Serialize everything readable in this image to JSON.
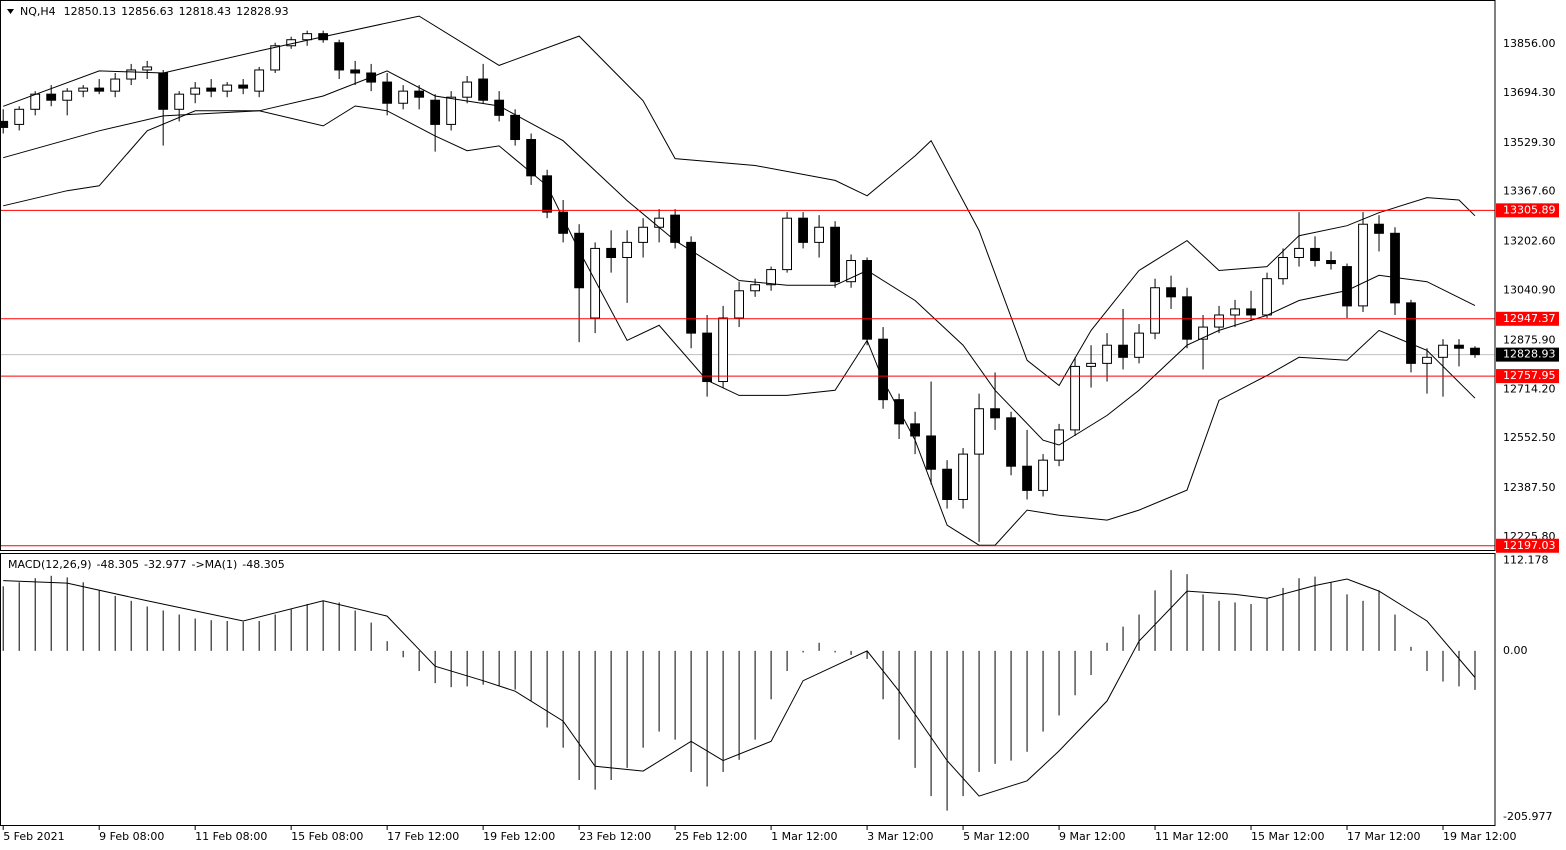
{
  "chart_data": [
    {
      "type": "candlestick",
      "title": "NQ,H4",
      "open": [
        13600,
        13590,
        13640,
        13690,
        13670,
        13700,
        13710,
        13700,
        13740,
        13770,
        13760,
        13640,
        13690,
        13710,
        13700,
        13720,
        13700,
        13770,
        13850,
        13870,
        13890,
        13860,
        13770,
        13760,
        13730,
        13660,
        13700,
        13670,
        13590,
        13680,
        13740,
        13670,
        13620,
        13540,
        13420,
        13300,
        13230,
        12950,
        13180,
        13150,
        13200,
        13250,
        13290,
        13200,
        12900,
        12740,
        12950,
        13040,
        13060,
        13110,
        13280,
        13200,
        13250,
        13070,
        13140,
        12880,
        12680,
        12600,
        12560,
        12450,
        12350,
        12500,
        12650,
        12620,
        12460,
        12380,
        12480,
        12580,
        12790,
        12800,
        12860,
        12820,
        12900,
        13050,
        13020,
        12880,
        12920,
        12960,
        12980,
        12960,
        13080,
        13150,
        13180,
        13140,
        13120,
        12990,
        13260,
        13230,
        13000,
        12800,
        12820,
        12860,
        12850.13
      ],
      "high": [
        13640,
        13650,
        13700,
        13720,
        13710,
        13720,
        13740,
        13760,
        13790,
        13800,
        13770,
        13700,
        13730,
        13740,
        13730,
        13740,
        13780,
        13860,
        13880,
        13900,
        13900,
        13870,
        13800,
        13790,
        13760,
        13720,
        13720,
        13690,
        13700,
        13750,
        13790,
        13700,
        13640,
        13560,
        13440,
        13340,
        13260,
        13200,
        13240,
        13240,
        13280,
        13310,
        13310,
        13220,
        12960,
        12990,
        13070,
        13080,
        13120,
        13300,
        13300,
        13290,
        13270,
        13160,
        13150,
        12920,
        12700,
        12640,
        12740,
        12480,
        12520,
        12700,
        12770,
        12640,
        12580,
        12500,
        12600,
        12820,
        12860,
        12900,
        12980,
        12930,
        13080,
        13090,
        13050,
        12960,
        12990,
        13010,
        13040,
        13100,
        13180,
        13300,
        13220,
        13170,
        13130,
        13300,
        13290,
        13250,
        13010,
        12850,
        12880,
        12880,
        12856.63
      ],
      "low": [
        13560,
        13570,
        13620,
        13650,
        13620,
        13680,
        13690,
        13680,
        13720,
        13740,
        13520,
        13600,
        13660,
        13680,
        13680,
        13690,
        13680,
        13760,
        13840,
        13850,
        13860,
        13740,
        13720,
        13700,
        13620,
        13640,
        13640,
        13500,
        13570,
        13660,
        13660,
        13600,
        13520,
        13390,
        13280,
        13200,
        12870,
        12900,
        13100,
        13000,
        13150,
        13200,
        13180,
        12850,
        12690,
        12720,
        12920,
        13020,
        13040,
        13100,
        13180,
        13150,
        13050,
        13050,
        12860,
        12650,
        12550,
        12500,
        12400,
        12320,
        12320,
        12210,
        12580,
        12430,
        12350,
        12360,
        12460,
        12560,
        12720,
        12740,
        12780,
        12800,
        12880,
        12980,
        12850,
        12780,
        12900,
        12920,
        12940,
        12950,
        13060,
        13120,
        13120,
        13110,
        12950,
        12970,
        13170,
        12960,
        12770,
        12700,
        12690,
        12790,
        12818.43
      ],
      "close": [
        13580,
        13640,
        13690,
        13670,
        13700,
        13710,
        13700,
        13740,
        13770,
        13780,
        13640,
        13690,
        13710,
        13700,
        13720,
        13710,
        13770,
        13850,
        13870,
        13890,
        13870,
        13770,
        13760,
        13730,
        13660,
        13700,
        13680,
        13590,
        13680,
        13730,
        13670,
        13620,
        13540,
        13420,
        13300,
        13230,
        13050,
        13180,
        13150,
        13200,
        13250,
        13280,
        13200,
        12900,
        12740,
        12950,
        13040,
        13060,
        13110,
        13280,
        13200,
        13250,
        13070,
        13140,
        12880,
        12680,
        12600,
        12560,
        12450,
        12350,
        12500,
        12650,
        12620,
        12460,
        12380,
        12480,
        12580,
        12790,
        12800,
        12860,
        12820,
        12900,
        13050,
        13020,
        12880,
        12920,
        12960,
        12980,
        12960,
        13080,
        13150,
        13180,
        13140,
        13130,
        12990,
        13260,
        13230,
        13000,
        12800,
        12820,
        12860,
        12850,
        12828.93
      ],
      "bull_color": "#ffffff",
      "bear_color": "#000000",
      "color": "#000000",
      "bands": [
        {
          "color": "#000000",
          "x": [
            0,
            6,
            10,
            16,
            20,
            26,
            31,
            36,
            40,
            42,
            47,
            52,
            54,
            57,
            58,
            61,
            64,
            66,
            68,
            71,
            74,
            76,
            79,
            81,
            84,
            86,
            89,
            91,
            92
          ],
          "values": [
            13650,
            13767,
            13760,
            13833,
            13880,
            13948,
            13785,
            13882,
            13668,
            13477,
            13454,
            13405,
            13354,
            13486,
            13536,
            13239,
            12810,
            12727,
            12909,
            13107,
            13206,
            13107,
            13120,
            13222,
            13255,
            13298,
            13348,
            13340,
            13288
          ]
        },
        {
          "color": "#000000",
          "x": [
            0,
            6,
            10,
            16,
            20,
            24,
            27,
            31,
            35,
            39,
            42,
            46,
            49,
            52,
            54,
            57,
            60,
            62,
            65,
            66,
            69,
            71,
            74,
            76,
            79,
            81,
            84,
            86,
            89,
            92
          ],
          "values": [
            13480,
            13569,
            13618,
            13635,
            13684,
            13767,
            13684,
            13651,
            13536,
            13338,
            13206,
            13074,
            13058,
            13058,
            13107,
            13008,
            12860,
            12711,
            12546,
            12530,
            12628,
            12711,
            12860,
            12909,
            12959,
            13008,
            13041,
            13091,
            13070,
            12991
          ]
        },
        {
          "color": "#000000",
          "x": [
            0,
            4,
            6,
            9,
            12,
            16,
            20,
            22,
            24,
            27,
            29,
            31,
            34,
            36,
            39,
            41,
            44,
            46,
            49,
            52,
            54,
            55,
            57,
            59,
            61,
            62,
            64,
            66,
            69,
            71,
            74,
            76,
            79,
            81,
            84,
            86,
            89,
            92
          ],
          "values": [
            13321,
            13371,
            13387,
            13569,
            13635,
            13635,
            13585,
            13651,
            13635,
            13552,
            13503,
            13519,
            13387,
            13173,
            12876,
            12926,
            12744,
            12694,
            12694,
            12711,
            12876,
            12744,
            12546,
            12265,
            12199,
            12199,
            12315,
            12298,
            12282,
            12315,
            12381,
            12678,
            12760,
            12820,
            12810,
            12909,
            12843,
            12685
          ]
        }
      ],
      "levels": [
        13305.89,
        12947.37,
        12757.95,
        12197.03
      ],
      "level_color": "#ff0000",
      "last_price_color": "#c0c0c0",
      "xlim": [
        -0.2,
        93.25
      ],
      "ylim": [
        12183,
        13998
      ],
      "yticks": [
        {
          "value": 13856,
          "label": "13856.00"
        },
        {
          "value": 13694.3,
          "label": "13694.30"
        },
        {
          "value": 13529.3,
          "label": "13529.30"
        },
        {
          "value": 13367.6,
          "label": "13367.60"
        },
        {
          "value": 13202.6,
          "label": "13202.60"
        },
        {
          "value": 13040.9,
          "label": "13040.90"
        },
        {
          "value": 12875.9,
          "label": "12875.90"
        },
        {
          "value": 12714.2,
          "label": "12714.20"
        },
        {
          "value": 12552.5,
          "label": "12552.50"
        },
        {
          "value": 12387.5,
          "label": "12387.50"
        },
        {
          "value": 12225.8,
          "label": "12225.80"
        }
      ]
    },
    {
      "type": "macd",
      "indicator_label": "MACD(12,26,9)",
      "signal_label": "->MA(1)",
      "histogram": {
        "color": "#000000",
        "values": [
          80,
          85,
          90,
          93,
          91,
          85,
          75,
          68,
          62,
          55,
          50,
          45,
          40,
          38,
          37,
          36,
          37,
          45,
          52,
          58,
          62,
          60,
          50,
          35,
          12,
          -8,
          -25,
          -40,
          -45,
          -44,
          -42,
          -44,
          -48,
          -62,
          -95,
          -120,
          -160,
          -172,
          -160,
          -145,
          -120,
          -100,
          -110,
          -150,
          -168,
          -150,
          -135,
          -110,
          -60,
          -25,
          -2,
          10,
          -2,
          -5,
          -10,
          -60,
          -110,
          -145,
          -180,
          -198,
          -180,
          -150,
          -140,
          -136,
          -125,
          -100,
          -80,
          -55,
          -30,
          10,
          30,
          45,
          75,
          100,
          95,
          70,
          62,
          60,
          58,
          65,
          78,
          90,
          92,
          85,
          70,
          62,
          75,
          45,
          5,
          -25,
          -38,
          -44,
          -48.305
        ]
      },
      "signal": {
        "color": "#000000",
        "x": [
          0,
          4,
          9,
          15,
          20,
          24,
          27,
          30,
          32,
          35,
          37,
          40,
          43,
          45,
          48,
          50,
          54,
          56,
          59,
          61,
          64,
          66,
          69,
          71,
          74,
          77,
          79,
          82,
          84,
          86,
          89,
          92
        ],
        "values": [
          87,
          84,
          62,
          37,
          62,
          43,
          -19,
          -37,
          -50,
          -87,
          -143,
          -149,
          -112,
          -136,
          -112,
          -37,
          0,
          -50,
          -136,
          -180,
          -161,
          -124,
          -62,
          12,
          74,
          70,
          65,
          81,
          89,
          74,
          37,
          -32.977
        ]
      },
      "xlim": [
        -0.2,
        93.25
      ],
      "ylim": [
        -217,
        120
      ],
      "yticks": [
        112.178,
        {
          "value": 0,
          "label": "0.00"
        },
        -205.977
      ],
      "xticks": [
        {
          "value": 0,
          "label": "5 Feb 2021"
        },
        {
          "value": 6,
          "label": "9 Feb 08:00"
        },
        {
          "value": 12,
          "label": "11 Feb 08:00"
        },
        {
          "value": 18,
          "label": "15 Feb 08:00"
        },
        {
          "value": 24,
          "label": "17 Feb 12:00"
        },
        {
          "value": 30,
          "label": "19 Feb 12:00"
        },
        {
          "value": 36,
          "label": "23 Feb 12:00"
        },
        {
          "value": 42,
          "label": "25 Feb 12:00"
        },
        {
          "value": 48,
          "label": "1 Mar 12:00"
        },
        {
          "value": 54,
          "label": "3 Mar 12:00"
        },
        {
          "value": 60,
          "label": "5 Mar 12:00"
        },
        {
          "value": 66,
          "label": "9 Mar 12:00"
        },
        {
          "value": 72,
          "label": "11 Mar 12:00"
        },
        {
          "value": 78,
          "label": "15 Mar 12:00"
        },
        {
          "value": 84,
          "label": "17 Mar 12:00"
        },
        {
          "value": 90,
          "label": "19 Mar 12:00"
        }
      ]
    }
  ]
}
